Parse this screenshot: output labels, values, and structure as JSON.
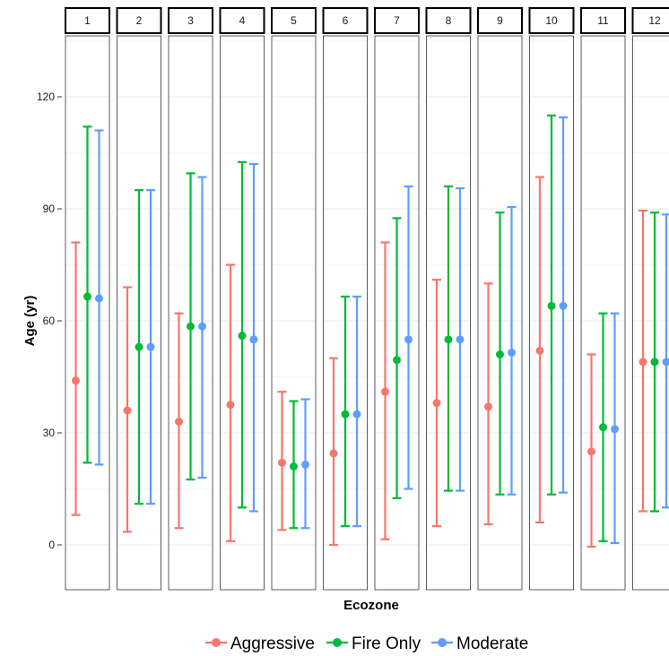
{
  "chart_data": {
    "type": "errorbar",
    "xlabel": "Ecozone",
    "ylabel": "Age (yr)",
    "ylim": [
      -12,
      138
    ],
    "yticks": [
      0,
      30,
      60,
      90,
      120
    ],
    "grid": true,
    "legend_position": "bottom",
    "facets": [
      "1",
      "2",
      "3",
      "4",
      "5",
      "6",
      "7",
      "8",
      "9",
      "10",
      "11",
      "12"
    ],
    "series": [
      {
        "name": "Aggressive",
        "color": "#F8766D",
        "mean": [
          44,
          36,
          33,
          37.5,
          22,
          24.5,
          41,
          38,
          37,
          52,
          25,
          49
        ],
        "lower": [
          8,
          3.5,
          4.5,
          1,
          4,
          0,
          1.5,
          5,
          5.5,
          6,
          -0.5,
          9
        ],
        "upper": [
          81,
          69,
          62,
          75,
          41,
          50,
          81,
          71,
          70,
          98.5,
          51,
          89.5
        ]
      },
      {
        "name": "Fire Only",
        "color": "#00BA38",
        "mean": [
          66.5,
          53,
          58.5,
          56,
          21,
          35,
          49.5,
          55,
          51,
          64,
          31.5,
          49
        ],
        "lower": [
          22,
          11,
          17.5,
          10,
          4.5,
          5,
          12.5,
          14.5,
          13.5,
          13.5,
          1,
          9
        ],
        "upper": [
          112,
          95,
          99.5,
          102.5,
          38.5,
          66.5,
          87.5,
          96,
          89,
          115,
          62,
          89
        ]
      },
      {
        "name": "Moderate",
        "color": "#619CFF",
        "mean": [
          66,
          53,
          58.5,
          55,
          21.5,
          35,
          55,
          55,
          51.5,
          64,
          31,
          49
        ],
        "lower": [
          21.5,
          11,
          18,
          9,
          4.5,
          5,
          15,
          14.5,
          13.5,
          14,
          0.5,
          10
        ],
        "upper": [
          111,
          95,
          98.5,
          102,
          39,
          66.5,
          96,
          95.5,
          90.5,
          114.5,
          62,
          88.5
        ]
      }
    ]
  }
}
